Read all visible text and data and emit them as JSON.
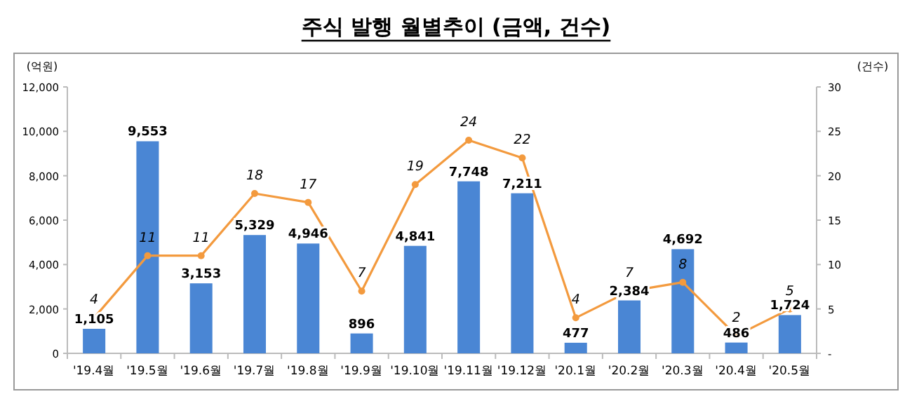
{
  "chart_data": {
    "type": "bar",
    "title": "주식 발행 월별추이 (금액, 건수)",
    "ylabel": "(억원)",
    "y2label": "(건수)",
    "categories": [
      "'19.4월",
      "'19.5월",
      "'19.6월",
      "'19.7월",
      "'19.8월",
      "'19.9월",
      "'19.10월",
      "'19.11월",
      "'19.12월",
      "'20.1월",
      "'20.2월",
      "'20.3월",
      "'20.4월",
      "'20.5월"
    ],
    "series": [
      {
        "color": "#4a86d4",
        "values": [
          1105,
          9553,
          3153,
          5329,
          4946,
          896,
          4841,
          7748,
          7211,
          477,
          2384,
          4692,
          486,
          1724
        ],
        "value_labels": [
          "1,105",
          "9,553",
          "3,153",
          "5,329",
          "4,946",
          "896",
          "4,841",
          "7,748",
          "7,211",
          "477",
          "2,384",
          "4,692",
          "486",
          "1,724"
        ]
      },
      {
        "type": "line",
        "axis": "y2",
        "color": "#f39a3e",
        "marker": "circle",
        "values": [
          4,
          11,
          11,
          18,
          17,
          7,
          19,
          24,
          22,
          4,
          7,
          8,
          2,
          5
        ]
      }
    ],
    "ylim": [
      0,
      12000
    ],
    "yticks": [
      {
        "value": 0,
        "label": "0"
      },
      {
        "value": 2000,
        "label": "2,000"
      },
      {
        "value": 4000,
        "label": "4,000"
      },
      {
        "value": 6000,
        "label": "6,000"
      },
      {
        "value": 8000,
        "label": "8,000"
      },
      {
        "value": 10000,
        "label": "10,000"
      },
      {
        "value": 12000,
        "label": "12,000"
      }
    ],
    "y2lim": [
      0,
      30
    ],
    "y2ticks": [
      {
        "value": 0,
        "label": "-"
      },
      5,
      10,
      15,
      20,
      25,
      30
    ],
    "data_labels": true,
    "grid": false
  }
}
